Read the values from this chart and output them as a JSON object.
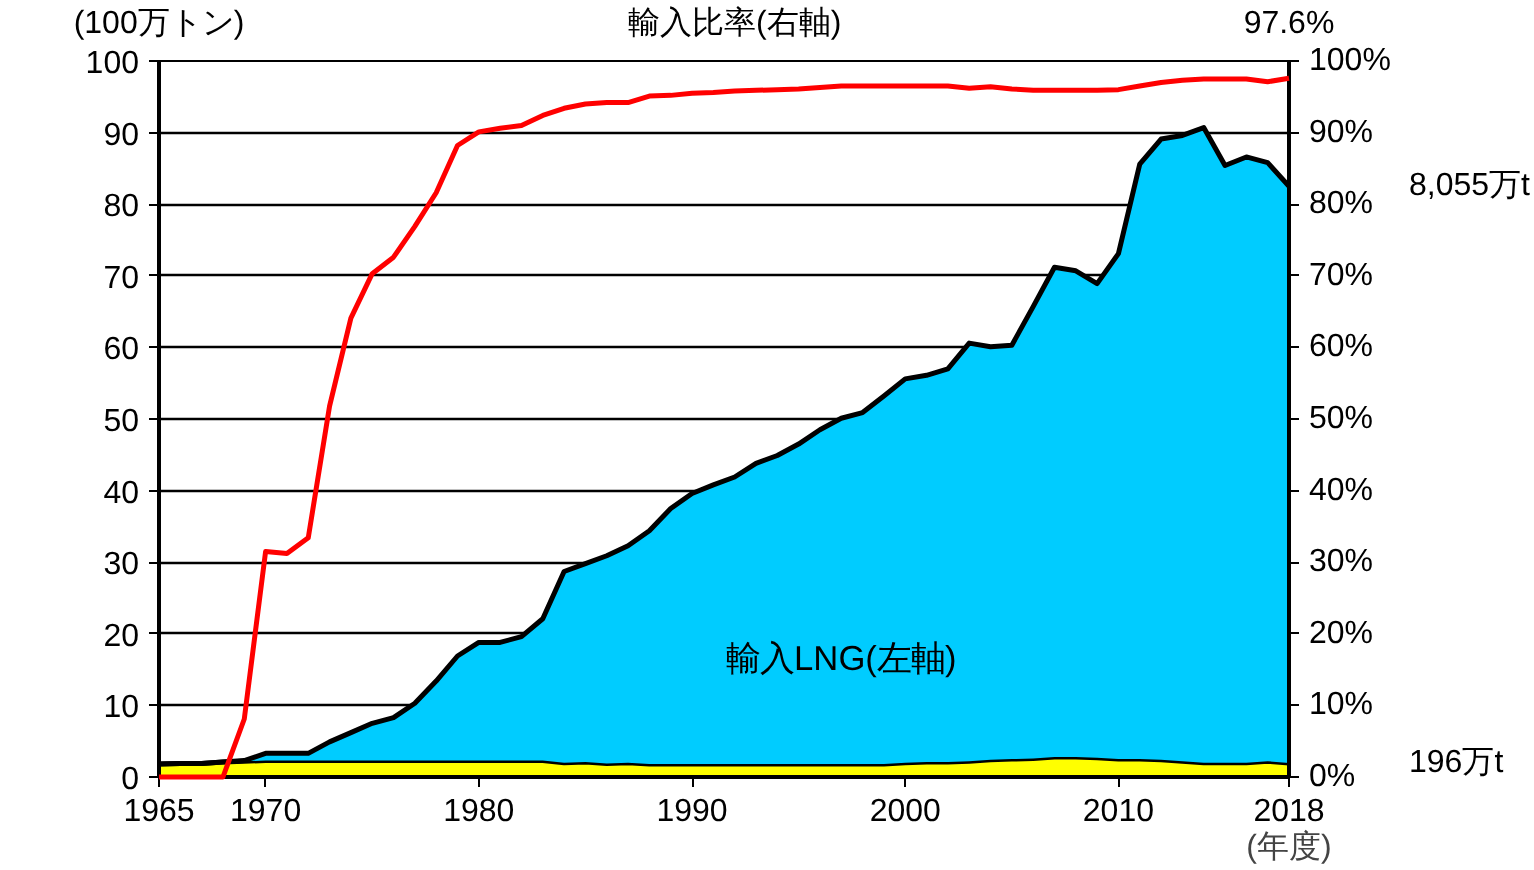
{
  "chart_data": {
    "type": "area",
    "stacked": true,
    "xlabel": "(年度)",
    "ylabel": "(100万トン)",
    "x": [
      1965,
      1966,
      1967,
      1968,
      1969,
      1970,
      1971,
      1972,
      1973,
      1974,
      1975,
      1976,
      1977,
      1978,
      1979,
      1980,
      1981,
      1982,
      1983,
      1984,
      1985,
      1986,
      1987,
      1988,
      1989,
      1990,
      1991,
      1992,
      1993,
      1994,
      1995,
      1996,
      1997,
      1998,
      1999,
      2000,
      2001,
      2002,
      2003,
      2004,
      2005,
      2006,
      2007,
      2008,
      2009,
      2010,
      2011,
      2012,
      2013,
      2014,
      2015,
      2016,
      2017,
      2018
    ],
    "series": [
      {
        "color": "#ffff00",
        "values": [
          1.8,
          1.9,
          1.9,
          2.1,
          2.2,
          2.3,
          2.3,
          2.3,
          2.3,
          2.3,
          2.3,
          2.3,
          2.3,
          2.3,
          2.3,
          2.3,
          2.3,
          2.3,
          2.3,
          2.0,
          2.1,
          1.9,
          2.0,
          1.8,
          1.8,
          1.8,
          1.8,
          1.8,
          1.8,
          1.8,
          1.8,
          1.8,
          1.8,
          1.8,
          1.8,
          2.0,
          2.1,
          2.1,
          2.2,
          2.4,
          2.5,
          2.6,
          2.8,
          2.8,
          2.7,
          2.5,
          2.5,
          2.4,
          2.2,
          2.0,
          2.0,
          2.0,
          2.2,
          1.96
        ]
      },
      {
        "name": "輸入LNG(左軸)",
        "color": "#00ccff",
        "values": [
          0,
          0,
          0,
          0,
          0.1,
          1.0,
          1.0,
          1.0,
          2.6,
          3.9,
          5.2,
          6.0,
          8.0,
          11.1,
          14.6,
          16.5,
          16.5,
          17.3,
          19.8,
          26.7,
          27.7,
          29.0,
          30.3,
          32.6,
          35.7,
          37.8,
          39.0,
          40.1,
          42.0,
          43.1,
          44.7,
          46.7,
          48.3,
          49.1,
          51.4,
          53.6,
          54.0,
          54.9,
          58.4,
          57.7,
          57.8,
          63.1,
          68.4,
          67.9,
          66.2,
          70.6,
          83.1,
          86.7,
          87.4,
          88.7,
          83.4,
          84.6,
          83.6,
          80.55
        ]
      },
      {
        "name": "輸入比率(右軸)",
        "type": "line",
        "axis": "y2",
        "color": "#ff0000",
        "value_labels": [
          null,
          null,
          null,
          null,
          null,
          null,
          null,
          null,
          null,
          null,
          null,
          null,
          null,
          null,
          null,
          null,
          null,
          null,
          null,
          null,
          null,
          null,
          null,
          null,
          null,
          null,
          null,
          null,
          null,
          null,
          null,
          null,
          null,
          null,
          null,
          null,
          null,
          null,
          null,
          null,
          null,
          null,
          null,
          null,
          null,
          null,
          null,
          null,
          null,
          null,
          null,
          null,
          null,
          "97.6%"
        ],
        "values": [
          0,
          0,
          0,
          0,
          8.1,
          31.5,
          31.2,
          33.4,
          51.8,
          64.1,
          70.3,
          72.6,
          76.9,
          81.6,
          88.2,
          90.1,
          90.6,
          91.0,
          92.4,
          93.4,
          94.0,
          94.2,
          94.2,
          95.1,
          95.2,
          95.5,
          95.6,
          95.8,
          95.9,
          96.0,
          96.1,
          96.3,
          96.5,
          96.5,
          96.5,
          96.5,
          96.5,
          96.5,
          96.2,
          96.4,
          96.1,
          95.9,
          95.9,
          95.9,
          95.9,
          96.0,
          96.5,
          97.0,
          97.3,
          97.5,
          97.5,
          97.5,
          97.1,
          97.6
        ]
      }
    ],
    "xlim": [
      1965,
      2018
    ],
    "xticks": [
      1965,
      1970,
      1980,
      1990,
      2000,
      2010,
      2018
    ],
    "ylim": [
      0,
      100
    ],
    "yticks": [
      0,
      10,
      20,
      30,
      40,
      50,
      60,
      70,
      80,
      90,
      100
    ],
    "y2lim": [
      0,
      100
    ],
    "y2ticks": [
      {
        "value": 0,
        "label": "0%"
      },
      {
        "value": 10,
        "label": "10%"
      },
      {
        "value": 20,
        "label": "20%"
      },
      {
        "value": 30,
        "label": "30%"
      },
      {
        "value": 40,
        "label": "40%"
      },
      {
        "value": 50,
        "label": "50%"
      },
      {
        "value": 60,
        "label": "60%"
      },
      {
        "value": 70,
        "label": "70%"
      },
      {
        "value": 80,
        "label": "80%"
      },
      {
        "value": 90,
        "label": "90%"
      },
      {
        "value": 100,
        "label": "100%"
      }
    ],
    "grid": "y",
    "annotations": [
      "8,055万t",
      "196万t"
    ]
  }
}
